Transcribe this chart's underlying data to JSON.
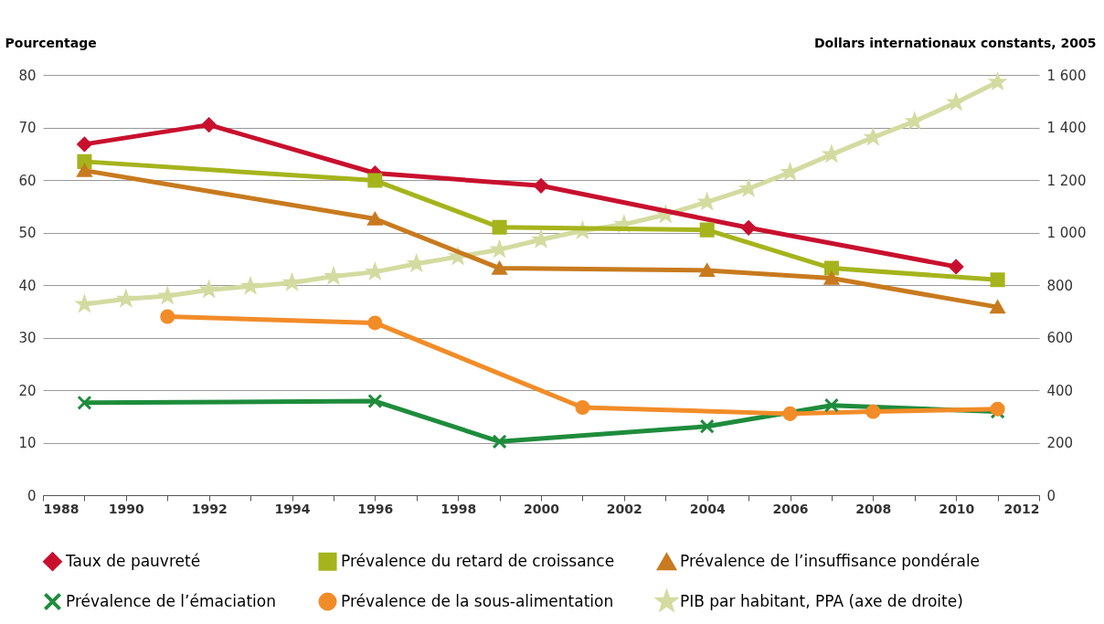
{
  "chart_data": {
    "type": "line",
    "ylabel": "Pourcentage",
    "y2label": "Dollars internationaux constants, 2005",
    "xlim": [
      1988,
      2012
    ],
    "xticks": [
      1988,
      {
        "value": 1989,
        "label": null
      },
      1990,
      {
        "value": 1991,
        "label": null
      },
      1992,
      {
        "value": 1993,
        "label": null
      },
      1994,
      {
        "value": 1995,
        "label": null
      },
      1996,
      {
        "value": 1997,
        "label": null
      },
      1998,
      {
        "value": 1999,
        "label": null
      },
      2000,
      {
        "value": 2001,
        "label": null
      },
      2002,
      {
        "value": 2003,
        "label": null
      },
      2004,
      {
        "value": 2005,
        "label": null
      },
      2006,
      {
        "value": 2007,
        "label": null
      },
      2008,
      {
        "value": 2009,
        "label": null
      },
      2010,
      {
        "value": 2011,
        "label": null
      },
      2012
    ],
    "ylim": [
      0,
      80
    ],
    "yticks": [
      0,
      10,
      20,
      30,
      40,
      50,
      60,
      70,
      80
    ],
    "y2lim": [
      0,
      1600
    ],
    "y2ticks": [
      0,
      200,
      400,
      600,
      800,
      {
        "value": 1000,
        "label": "1 000"
      },
      {
        "value": 1200,
        "label": "1 200"
      },
      {
        "value": 1400,
        "label": "1 400"
      },
      {
        "value": 1600,
        "label": "1 600"
      }
    ],
    "grid": "y",
    "legend": "bottom",
    "line_style": "solid",
    "series": [
      {
        "name": "Taux de pauvreté",
        "color": "#c8102e",
        "marker": "diamond",
        "x": [
          1989,
          1992,
          1996,
          2000,
          2005,
          2010
        ],
        "values": [
          66.8,
          70.5,
          61.3,
          58.9,
          50.9,
          43.5
        ]
      },
      {
        "name": "Prévalence du retard de croissance",
        "color": "#a5b41c",
        "marker": "square",
        "x": [
          1989,
          1996,
          1999,
          2004,
          2007,
          2011
        ],
        "values": [
          63.5,
          59.9,
          51.0,
          50.5,
          43.2,
          41.0
        ]
      },
      {
        "name": "Prévalence de l’insuffisance pondérale",
        "color": "#c87a1e",
        "marker": "triangle",
        "x": [
          1989,
          1996,
          1999,
          2004,
          2007,
          2011
        ],
        "values": [
          61.8,
          52.6,
          43.2,
          42.8,
          41.3,
          35.8
        ]
      },
      {
        "name": "Prévalence de l’émaciation",
        "color": "#1e8c3c",
        "marker": "cross",
        "x": [
          1989,
          1996,
          1999,
          2004,
          2007,
          2011
        ],
        "values": [
          17.6,
          17.9,
          10.2,
          13.1,
          17.1,
          15.9
        ]
      },
      {
        "name": "Prévalence de la sous-alimentation",
        "color": "#f28c28",
        "marker": "circle",
        "x": [
          1991,
          1996,
          2001,
          2006,
          2008,
          2011
        ],
        "values": [
          34.0,
          32.8,
          16.7,
          15.5,
          15.9,
          16.4
        ]
      },
      {
        "name": "PIB par habitant, PPA (axe de droite)",
        "color": "#d4dba0",
        "marker": "star",
        "axis": "y2",
        "x": [
          1989,
          1990,
          1991,
          1992,
          1993,
          1994,
          1995,
          1996,
          1997,
          1998,
          1999,
          2000,
          2001,
          2002,
          2003,
          2004,
          2005,
          2006,
          2007,
          2008,
          2009,
          2010,
          2011
        ],
        "values": [
          727,
          747,
          758,
          782,
          795,
          809,
          833,
          850,
          881,
          908,
          935,
          973,
          1007,
          1031,
          1068,
          1116,
          1167,
          1229,
          1297,
          1362,
          1423,
          1495,
          1573
        ]
      }
    ]
  }
}
